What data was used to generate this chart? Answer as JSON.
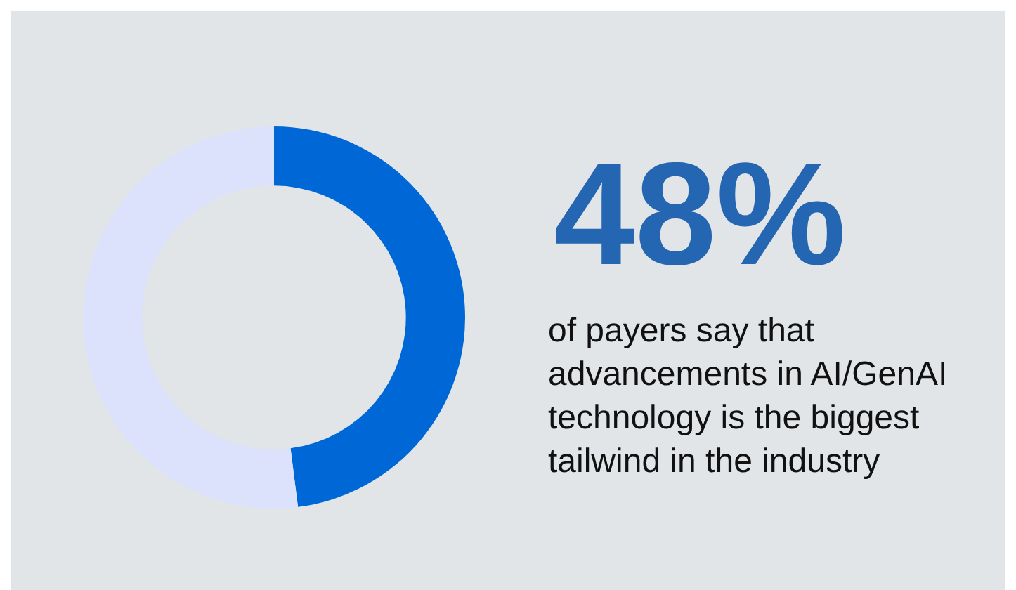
{
  "chart_data": {
    "type": "donut",
    "categories": [
      null,
      null
    ],
    "values": [
      48,
      52
    ],
    "colors": [
      "#0068d6",
      "#dce2fb"
    ],
    "value_labels": [
      "48%",
      null
    ],
    "legend": false,
    "annotations": [
      "of payers say that advancements in AI/GenAI technology is the biggest tailwind in the industry"
    ]
  }
}
